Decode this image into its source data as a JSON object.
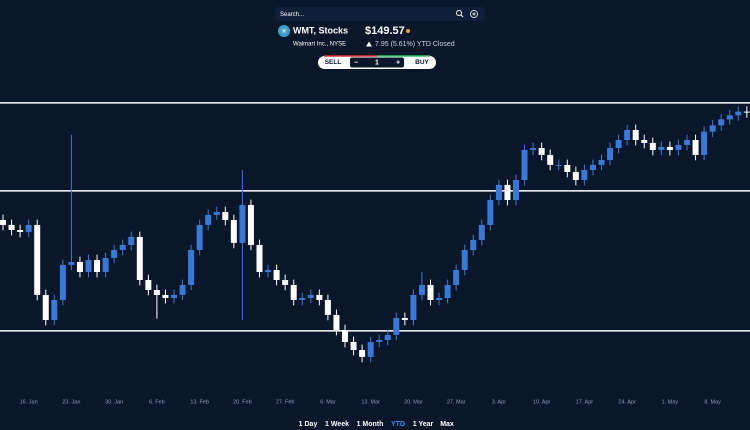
{
  "header": {
    "search_placeholder": "Search...",
    "symbol_label": "WMT, Stocks",
    "price": "$149.57",
    "company": "Walmart Inc., NYSE",
    "change": "7.95 (5.61%) YTD Closed"
  },
  "trade": {
    "sell": "SELL",
    "decrement": "−",
    "quantity": "1",
    "increment": "+",
    "buy": "BUY"
  },
  "periods": {
    "items": [
      "1 Day",
      "1 Week",
      "1 Month",
      "YTD",
      "1 Year",
      "Max"
    ],
    "active": 3
  },
  "chart_data": {
    "type": "candlestick",
    "up_color": "#3a78d6",
    "down_color": "#ffffff",
    "level_color": "#ffffff",
    "ylim": [
      128.375,
      151.25
    ],
    "levels": [
      150.28,
      143.68,
      133.18
    ],
    "open": [
      141.5,
      141.13,
      140.75,
      140.6,
      141.13,
      135.88,
      134.0,
      135.5,
      138.13,
      138.35,
      137.6,
      138.5,
      137.6,
      138.65,
      139.25,
      139.63,
      140.23,
      137.0,
      136.25,
      135.88,
      135.65,
      135.88,
      136.63,
      139.25,
      141.13,
      141.88,
      142.1,
      141.5,
      139.78,
      142.63,
      139.63,
      137.6,
      137.75,
      137.0,
      136.63,
      135.5,
      135.65,
      135.88,
      135.5,
      134.38,
      133.25,
      132.35,
      131.75,
      131.23,
      132.35,
      132.5,
      132.88,
      134.15,
      134.0,
      135.88,
      136.63,
      135.5,
      135.65,
      136.63,
      137.75,
      139.25,
      140.0,
      141.13,
      143.0,
      144.13,
      143.0,
      144.5,
      146.75,
      146.9,
      146.38,
      145.63,
      145.63,
      145.1,
      144.5,
      145.25,
      145.63,
      146.0,
      146.9,
      147.5,
      148.25,
      147.5,
      147.28,
      146.75,
      146.98,
      146.75,
      147.13,
      147.5,
      146.38,
      148.13,
      148.6,
      149.05,
      149.35,
      149.63
    ],
    "high": [
      141.9,
      141.53,
      141.15,
      141.53,
      141.53,
      136.28,
      135.9,
      138.53,
      147.88,
      138.75,
      138.9,
      138.9,
      139.05,
      139.65,
      140.03,
      140.63,
      140.63,
      137.4,
      136.65,
      136.28,
      136.28,
      137.03,
      139.65,
      141.53,
      142.28,
      142.5,
      142.5,
      141.9,
      145.25,
      143.03,
      140.03,
      138.15,
      138.15,
      137.4,
      137.03,
      136.05,
      136.28,
      136.28,
      135.9,
      134.78,
      133.65,
      132.75,
      132.15,
      132.75,
      132.9,
      133.28,
      134.55,
      134.55,
      136.28,
      137.6,
      137.03,
      136.05,
      137.03,
      138.15,
      139.65,
      140.4,
      141.53,
      143.4,
      144.53,
      144.53,
      144.9,
      147.15,
      147.3,
      147.3,
      146.78,
      146.03,
      146.03,
      145.5,
      145.65,
      146.03,
      146.4,
      147.3,
      147.9,
      148.65,
      148.65,
      147.9,
      147.68,
      147.38,
      147.38,
      147.53,
      147.9,
      147.9,
      148.53,
      149.0,
      149.45,
      149.75,
      150.03,
      150.03
    ],
    "low": [
      140.73,
      140.35,
      140.2,
      140.2,
      135.48,
      133.6,
      133.6,
      135.1,
      137.73,
      137.2,
      137.2,
      137.2,
      137.2,
      138.25,
      138.85,
      139.23,
      136.6,
      135.85,
      134.1,
      135.25,
      135.25,
      135.48,
      136.23,
      138.85,
      140.73,
      141.48,
      141.1,
      139.38,
      134.0,
      139.23,
      137.2,
      137.2,
      136.6,
      136.23,
      135.1,
      135.1,
      135.25,
      135.1,
      133.98,
      132.85,
      131.95,
      131.35,
      130.83,
      130.83,
      131.95,
      132.1,
      132.48,
      133.6,
      133.6,
      135.48,
      135.1,
      135.1,
      135.25,
      136.23,
      137.35,
      138.85,
      139.6,
      140.73,
      142.6,
      142.6,
      142.6,
      144.1,
      146.35,
      145.98,
      145.23,
      145.23,
      144.7,
      144.1,
      144.1,
      144.85,
      145.23,
      145.6,
      146.5,
      147.1,
      147.1,
      146.88,
      146.35,
      146.35,
      146.35,
      146.35,
      146.73,
      145.98,
      145.98,
      147.73,
      148.2,
      148.65,
      148.95,
      149.17
    ],
    "close": [
      141.13,
      140.75,
      140.6,
      141.13,
      135.88,
      134.0,
      135.5,
      138.13,
      138.35,
      137.6,
      138.5,
      137.6,
      138.65,
      139.25,
      139.63,
      140.23,
      137.0,
      136.25,
      135.88,
      135.65,
      135.88,
      136.63,
      139.25,
      141.13,
      141.88,
      142.1,
      141.5,
      139.78,
      142.63,
      139.63,
      137.6,
      137.75,
      137.0,
      136.63,
      135.5,
      135.65,
      135.88,
      135.5,
      134.38,
      133.25,
      132.35,
      131.75,
      131.23,
      132.35,
      132.5,
      132.88,
      134.15,
      134.0,
      135.88,
      136.63,
      135.5,
      135.65,
      136.63,
      137.75,
      139.25,
      140.0,
      141.13,
      143.0,
      144.13,
      143.0,
      144.5,
      146.75,
      146.9,
      146.38,
      145.63,
      145.63,
      145.1,
      144.5,
      145.25,
      145.63,
      146.0,
      146.9,
      147.5,
      148.25,
      147.5,
      147.28,
      146.75,
      146.98,
      146.75,
      147.13,
      147.5,
      146.38,
      148.13,
      148.6,
      149.05,
      149.35,
      149.63,
      149.57
    ],
    "xticks": [
      {
        "value": 3,
        "label": "16. Jan"
      },
      {
        "value": 8,
        "label": "23. Jan"
      },
      {
        "value": 13,
        "label": "30. Jan"
      },
      {
        "value": 18,
        "label": "6. Feb"
      },
      {
        "value": 23,
        "label": "13. Feb"
      },
      {
        "value": 28,
        "label": "20. Feb"
      },
      {
        "value": 33,
        "label": "27. Feb"
      },
      {
        "value": 38,
        "label": "6. Mar"
      },
      {
        "value": 43,
        "label": "13. Mar"
      },
      {
        "value": 48,
        "label": "20. Mar"
      },
      {
        "value": 53,
        "label": "27. Mar"
      },
      {
        "value": 58,
        "label": "3. Apr"
      },
      {
        "value": 63,
        "label": "10. Apr"
      },
      {
        "value": 68,
        "label": "17. Apr"
      },
      {
        "value": 73,
        "label": "24. Apr"
      },
      {
        "value": 78,
        "label": "1. May"
      },
      {
        "value": 83,
        "label": "8. May"
      }
    ]
  }
}
